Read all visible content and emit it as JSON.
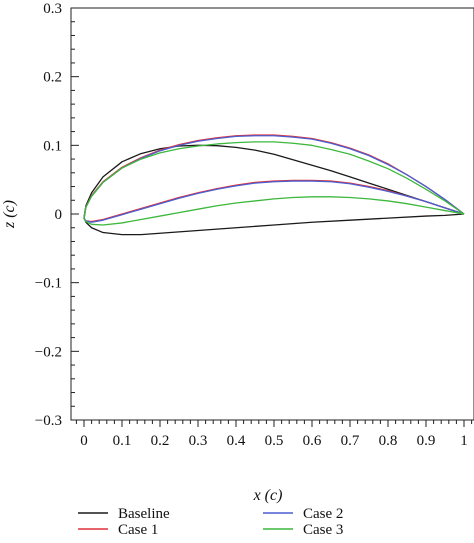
{
  "chart_data": {
    "type": "line",
    "xlabel": "x (c)",
    "ylabel": "z (c)",
    "xlim": [
      -0.03,
      1.02
    ],
    "ylim": [
      -0.3,
      0.3
    ],
    "x_ticks": [
      "0",
      "0.1",
      "0.2",
      "0.3",
      "0.4",
      "0.5",
      "0.6",
      "0.7",
      "0.8",
      "0.9",
      "1"
    ],
    "y_ticks": [
      "0.3",
      "0.2",
      "0.1",
      "0",
      "−0.1",
      "−0.2",
      "−0.3"
    ],
    "grid": false,
    "legend_position": "bottom",
    "series": [
      {
        "name": "Baseline",
        "color": "#1a1a1a",
        "upper": {
          "x": [
            0,
            0.005,
            0.02,
            0.05,
            0.1,
            0.15,
            0.2,
            0.25,
            0.3,
            0.35,
            0.4,
            0.45,
            0.5,
            0.55,
            0.6,
            0.65,
            0.7,
            0.75,
            0.8,
            0.85,
            0.9,
            0.95,
            1.0
          ],
          "y": [
            -0.005,
            0.012,
            0.031,
            0.054,
            0.076,
            0.088,
            0.095,
            0.099,
            0.1,
            0.0995,
            0.097,
            0.093,
            0.087,
            0.079,
            0.071,
            0.063,
            0.054,
            0.045,
            0.036,
            0.027,
            0.018,
            0.009,
            0.0
          ]
        },
        "lower": {
          "x": [
            0,
            0.005,
            0.02,
            0.05,
            0.1,
            0.15,
            0.2,
            0.3,
            0.4,
            0.5,
            0.6,
            0.7,
            0.8,
            0.9,
            0.95,
            1.0
          ],
          "y": [
            -0.005,
            -0.012,
            -0.02,
            -0.027,
            -0.03,
            -0.03,
            -0.028,
            -0.024,
            -0.02,
            -0.016,
            -0.012,
            -0.009,
            -0.006,
            -0.003,
            -0.002,
            0.0
          ]
        }
      },
      {
        "name": "Case 1",
        "color": "#e0303a",
        "upper": {
          "x": [
            0,
            0.005,
            0.02,
            0.05,
            0.1,
            0.15,
            0.2,
            0.25,
            0.3,
            0.35,
            0.4,
            0.45,
            0.5,
            0.55,
            0.6,
            0.65,
            0.7,
            0.75,
            0.8,
            0.85,
            0.9,
            0.95,
            1.0
          ],
          "y": [
            -0.007,
            0.01,
            0.027,
            0.047,
            0.068,
            0.082,
            0.093,
            0.101,
            0.107,
            0.111,
            0.114,
            0.115,
            0.115,
            0.113,
            0.11,
            0.104,
            0.096,
            0.086,
            0.073,
            0.057,
            0.04,
            0.021,
            0.0
          ]
        },
        "lower": {
          "x": [
            0,
            0.005,
            0.02,
            0.05,
            0.1,
            0.15,
            0.2,
            0.25,
            0.3,
            0.35,
            0.4,
            0.45,
            0.5,
            0.55,
            0.6,
            0.65,
            0.7,
            0.75,
            0.8,
            0.85,
            0.9,
            0.95,
            1.0
          ],
          "y": [
            -0.007,
            -0.01,
            -0.011,
            -0.008,
            0.0,
            0.008,
            0.016,
            0.024,
            0.031,
            0.037,
            0.042,
            0.046,
            0.048,
            0.049,
            0.049,
            0.048,
            0.045,
            0.04,
            0.034,
            0.026,
            0.018,
            0.009,
            0.0
          ]
        }
      },
      {
        "name": "Case 2",
        "color": "#4a5fd0",
        "upper": {
          "x": [
            0,
            0.005,
            0.02,
            0.05,
            0.1,
            0.15,
            0.2,
            0.25,
            0.3,
            0.35,
            0.4,
            0.45,
            0.5,
            0.55,
            0.6,
            0.65,
            0.7,
            0.75,
            0.8,
            0.85,
            0.9,
            0.95,
            1.0
          ],
          "y": [
            -0.007,
            0.01,
            0.026,
            0.046,
            0.067,
            0.081,
            0.092,
            0.1,
            0.106,
            0.11,
            0.113,
            0.114,
            0.114,
            0.112,
            0.109,
            0.103,
            0.095,
            0.085,
            0.072,
            0.057,
            0.04,
            0.021,
            0.0
          ]
        },
        "lower": {
          "x": [
            0,
            0.005,
            0.02,
            0.05,
            0.1,
            0.15,
            0.2,
            0.25,
            0.3,
            0.35,
            0.4,
            0.45,
            0.5,
            0.55,
            0.6,
            0.65,
            0.7,
            0.75,
            0.8,
            0.85,
            0.9,
            0.95,
            1.0
          ],
          "y": [
            -0.007,
            -0.01,
            -0.012,
            -0.009,
            -0.001,
            0.007,
            0.015,
            0.023,
            0.03,
            0.036,
            0.041,
            0.045,
            0.047,
            0.048,
            0.048,
            0.047,
            0.044,
            0.039,
            0.033,
            0.026,
            0.018,
            0.009,
            0.0
          ]
        }
      },
      {
        "name": "Case 3",
        "color": "#3cb83c",
        "upper": {
          "x": [
            0,
            0.005,
            0.02,
            0.05,
            0.1,
            0.15,
            0.2,
            0.25,
            0.3,
            0.35,
            0.4,
            0.45,
            0.5,
            0.55,
            0.6,
            0.65,
            0.7,
            0.75,
            0.8,
            0.85,
            0.9,
            0.95,
            1.0
          ],
          "y": [
            -0.007,
            0.01,
            0.026,
            0.046,
            0.067,
            0.08,
            0.089,
            0.095,
            0.099,
            0.102,
            0.104,
            0.105,
            0.105,
            0.103,
            0.1,
            0.094,
            0.087,
            0.077,
            0.066,
            0.052,
            0.036,
            0.019,
            0.0
          ]
        },
        "lower": {
          "x": [
            0,
            0.005,
            0.02,
            0.05,
            0.1,
            0.15,
            0.2,
            0.25,
            0.3,
            0.35,
            0.4,
            0.45,
            0.5,
            0.55,
            0.6,
            0.65,
            0.7,
            0.75,
            0.8,
            0.85,
            0.9,
            0.95,
            1.0
          ],
          "y": [
            -0.007,
            -0.011,
            -0.015,
            -0.016,
            -0.013,
            -0.008,
            -0.003,
            0.002,
            0.007,
            0.012,
            0.016,
            0.019,
            0.022,
            0.024,
            0.025,
            0.025,
            0.024,
            0.022,
            0.019,
            0.015,
            0.01,
            0.005,
            0.0
          ]
        }
      }
    ]
  }
}
